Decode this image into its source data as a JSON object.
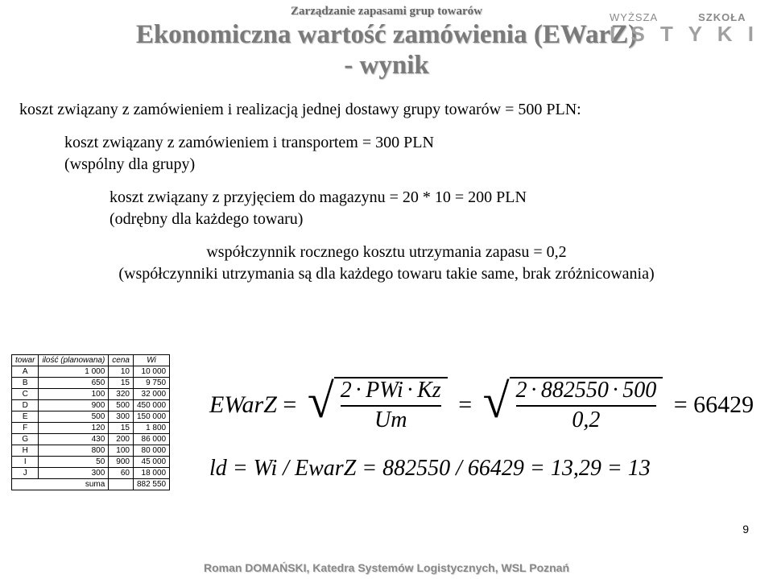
{
  "header": {
    "pre_title": "Zarządzanie zapasami grup towarów",
    "title_line1": "Ekonomiczna wartość zamówienia (EWarZ)",
    "title_line2": "- wynik"
  },
  "logo": {
    "top_left": "WYŻSZA",
    "top_right": "SZKOŁA",
    "bottom": "I S T Y K I"
  },
  "paragraphs": {
    "p1": "koszt związany z zamówieniem i realizacją jednej dostawy grupy towarów = 500 PLN:",
    "p2a": "koszt związany z zamówieniem i transportem = 300 PLN",
    "p2b": "(wspólny dla grupy)",
    "p3a": "koszt związany z przyjęciem do magazynu = 20 * 10 = 200 PLN",
    "p3b": "(odrębny dla każdego towaru)",
    "p4a": "współczynnik rocznego kosztu utrzymania zapasu = 0,2",
    "p4b": "(współczynniki utrzymania są dla każdego towaru takie same, brak zróżnicowania)"
  },
  "table": {
    "headers": [
      "towar",
      "ilość (planowana)",
      "cena",
      "Wi"
    ],
    "rows": [
      [
        "A",
        "1 000",
        "10",
        "10 000"
      ],
      [
        "B",
        "650",
        "15",
        "9 750"
      ],
      [
        "C",
        "100",
        "320",
        "32 000"
      ],
      [
        "D",
        "900",
        "500",
        "450 000"
      ],
      [
        "E",
        "500",
        "300",
        "150 000"
      ],
      [
        "F",
        "120",
        "15",
        "1 800"
      ],
      [
        "G",
        "430",
        "200",
        "86 000"
      ],
      [
        "H",
        "800",
        "100",
        "80 000"
      ],
      [
        "I",
        "50",
        "900",
        "45 000"
      ],
      [
        "J",
        "300",
        "60",
        "18 000"
      ]
    ],
    "sum_label": "suma",
    "sum_value": "882 550"
  },
  "formula1": {
    "lhs": "EWarZ",
    "frac1_top_a": "2",
    "frac1_top_b": "PWi",
    "frac1_top_c": "Kz",
    "frac1_bot": "Um",
    "frac2_top_a": "2",
    "frac2_top_b": "882550",
    "frac2_top_c": "500",
    "frac2_bot": "0,2",
    "result": "66429"
  },
  "formula2": {
    "text": "ld = Wi / EwarZ = 882550 / 66429 = 13,29 = 13"
  },
  "footer": {
    "text": "Roman DOMAŃSKI, Katedra Systemów Logistycznych, WSL Poznań",
    "page": "9"
  }
}
